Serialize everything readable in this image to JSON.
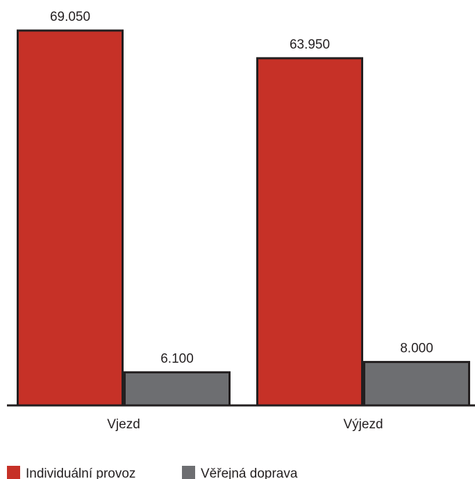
{
  "chart_data": {
    "type": "bar",
    "categories": [
      "Vjezd",
      "Výjezd"
    ],
    "series": [
      {
        "name": "Individuální provoz",
        "values": [
          69050,
          63950
        ],
        "labels": [
          "69.050",
          "63.950"
        ],
        "color": "#c63127"
      },
      {
        "name": "Věřejná doprava",
        "values": [
          6100,
          8000
        ],
        "labels": [
          "6.100",
          "8.000"
        ],
        "color": "#6d6e71"
      }
    ],
    "ylim": [
      0,
      69050
    ],
    "grid": false,
    "legend_position": "bottom-left"
  }
}
